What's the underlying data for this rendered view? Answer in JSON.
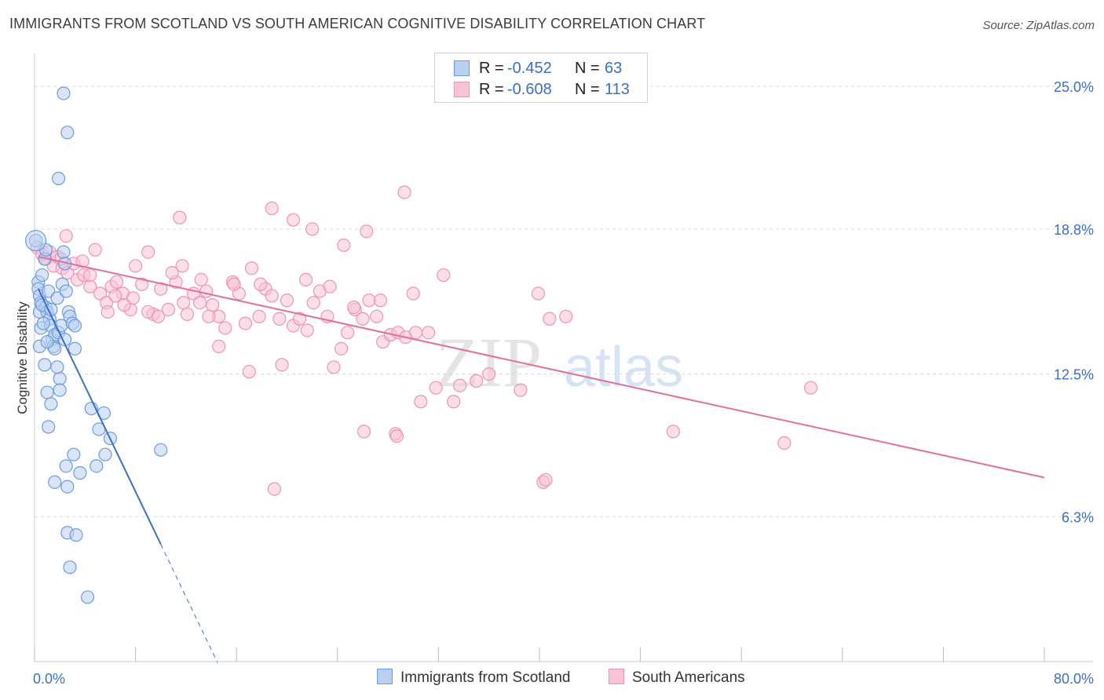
{
  "title": "IMMIGRANTS FROM SCOTLAND VS SOUTH AMERICAN COGNITIVE DISABILITY CORRELATION CHART",
  "source": "Source: ZipAtlas.com",
  "legend": {
    "rows": [
      {
        "r_label": "R =",
        "r_value": "-0.452",
        "n_label": "N =",
        "n_value": "63"
      },
      {
        "r_label": "R =",
        "r_value": "-0.608",
        "n_label": "N =",
        "n_value": "113"
      }
    ]
  },
  "watermark": {
    "zip": "ZIP",
    "atlas": "atlas"
  },
  "colors": {
    "blue": "#3a6fc4",
    "blue_fill": "#b9d0f0",
    "blue_stroke": "#6b9be0",
    "pink": "#e0709a",
    "pink_fill": "#f7c3d5",
    "pink_stroke": "#ee93b4",
    "grid": "#dddddd",
    "tick_label": "#3a6fc4"
  },
  "chart_data": {
    "type": "scatter",
    "title": "IMMIGRANTS FROM SCOTLAND VS SOUTH AMERICAN COGNITIVE DISABILITY CORRELATION CHART",
    "xlabel": "",
    "ylabel": "Cognitive Disability",
    "xlim": [
      0,
      80
    ],
    "ylim": [
      0,
      26.2
    ],
    "x_tick_labels": [
      "0.0%",
      "80.0%"
    ],
    "y_ticks": [
      {
        "value": 6.3,
        "label": "6.3%"
      },
      {
        "value": 12.5,
        "label": "12.5%"
      },
      {
        "value": 18.8,
        "label": "18.8%"
      },
      {
        "value": 25.0,
        "label": "25.0%"
      }
    ],
    "series": [
      {
        "name": "Immigrants from Scotland",
        "color_key": "blue",
        "r": -0.452,
        "n": 63,
        "trend": {
          "x0": 0.3,
          "y0": 16.2,
          "x1": 10.0,
          "y1": 5.1,
          "x_dash_end": 14.5
        },
        "points": [
          [
            0.1,
            18.3
          ],
          [
            0.3,
            16.5
          ],
          [
            0.3,
            16.2
          ],
          [
            0.4,
            15.9
          ],
          [
            0.5,
            15.6
          ],
          [
            0.4,
            15.2
          ],
          [
            0.5,
            14.5
          ],
          [
            0.4,
            13.7
          ],
          [
            0.6,
            16.8
          ],
          [
            0.8,
            17.5
          ],
          [
            0.9,
            17.9
          ],
          [
            0.9,
            15.4
          ],
          [
            1.0,
            15.2
          ],
          [
            1.1,
            16.1
          ],
          [
            1.2,
            14.9
          ],
          [
            1.3,
            14.6
          ],
          [
            1.4,
            14.0
          ],
          [
            1.5,
            13.7
          ],
          [
            1.6,
            13.6
          ],
          [
            1.6,
            14.2
          ],
          [
            1.8,
            15.8
          ],
          [
            1.9,
            14.3
          ],
          [
            2.0,
            12.3
          ],
          [
            2.0,
            11.8
          ],
          [
            1.8,
            12.8
          ],
          [
            2.1,
            14.6
          ],
          [
            2.2,
            16.4
          ],
          [
            2.3,
            17.8
          ],
          [
            2.4,
            17.3
          ],
          [
            2.5,
            16.1
          ],
          [
            2.7,
            15.2
          ],
          [
            2.8,
            15.0
          ],
          [
            3.0,
            14.7
          ],
          [
            3.2,
            14.6
          ],
          [
            3.2,
            13.6
          ],
          [
            0.8,
            12.9
          ],
          [
            1.0,
            11.7
          ],
          [
            1.3,
            11.2
          ],
          [
            1.1,
            10.2
          ],
          [
            4.5,
            11.0
          ],
          [
            5.5,
            10.8
          ],
          [
            5.1,
            10.1
          ],
          [
            6.0,
            9.7
          ],
          [
            5.6,
            9.0
          ],
          [
            4.9,
            8.5
          ],
          [
            3.1,
            9.0
          ],
          [
            2.5,
            8.5
          ],
          [
            3.6,
            8.2
          ],
          [
            1.6,
            7.8
          ],
          [
            2.6,
            7.6
          ],
          [
            2.6,
            5.6
          ],
          [
            3.3,
            5.5
          ],
          [
            2.8,
            4.1
          ],
          [
            4.2,
            2.8
          ],
          [
            10.0,
            9.2
          ],
          [
            2.3,
            24.7
          ],
          [
            2.6,
            23.0
          ],
          [
            1.9,
            21.0
          ],
          [
            0.6,
            15.5
          ],
          [
            1.3,
            15.3
          ],
          [
            0.7,
            14.7
          ],
          [
            2.4,
            14.0
          ],
          [
            1.0,
            13.9
          ]
        ]
      },
      {
        "name": "South Americans",
        "color_key": "pink",
        "r": -0.608,
        "n": 113,
        "trend": {
          "x0": 0.3,
          "y0": 17.6,
          "x1": 80.0,
          "y1": 8.0
        },
        "points": [
          [
            0.2,
            18.0
          ],
          [
            0.6,
            17.7
          ],
          [
            0.9,
            17.5
          ],
          [
            1.2,
            17.8
          ],
          [
            1.5,
            17.2
          ],
          [
            1.8,
            17.6
          ],
          [
            2.2,
            17.1
          ],
          [
            2.6,
            16.9
          ],
          [
            3.1,
            17.3
          ],
          [
            3.4,
            16.6
          ],
          [
            3.9,
            16.8
          ],
          [
            4.4,
            16.3
          ],
          [
            4.8,
            17.9
          ],
          [
            5.2,
            16.0
          ],
          [
            5.7,
            15.6
          ],
          [
            6.1,
            16.3
          ],
          [
            6.5,
            16.5
          ],
          [
            7.0,
            16.0
          ],
          [
            7.6,
            15.3
          ],
          [
            8.0,
            17.2
          ],
          [
            8.5,
            16.4
          ],
          [
            9.0,
            17.8
          ],
          [
            9.4,
            15.1
          ],
          [
            10.0,
            16.2
          ],
          [
            10.6,
            15.3
          ],
          [
            11.2,
            16.5
          ],
          [
            11.7,
            17.2
          ],
          [
            12.1,
            15.1
          ],
          [
            12.6,
            16.0
          ],
          [
            13.1,
            15.6
          ],
          [
            13.6,
            16.1
          ],
          [
            14.1,
            15.5
          ],
          [
            14.6,
            15.0
          ],
          [
            15.1,
            14.5
          ],
          [
            15.7,
            16.5
          ],
          [
            16.2,
            16.0
          ],
          [
            16.7,
            14.7
          ],
          [
            17.2,
            17.1
          ],
          [
            17.8,
            15.0
          ],
          [
            18.3,
            16.2
          ],
          [
            18.8,
            15.9
          ],
          [
            19.4,
            14.9
          ],
          [
            20.0,
            15.7
          ],
          [
            20.5,
            14.6
          ],
          [
            21.0,
            14.9
          ],
          [
            21.6,
            14.4
          ],
          [
            22.1,
            15.6
          ],
          [
            22.6,
            16.1
          ],
          [
            23.2,
            15.0
          ],
          [
            23.7,
            12.8
          ],
          [
            24.3,
            13.6
          ],
          [
            24.8,
            14.3
          ],
          [
            25.4,
            15.3
          ],
          [
            26.0,
            14.9
          ],
          [
            26.5,
            15.7
          ],
          [
            27.1,
            15.0
          ],
          [
            27.6,
            13.9
          ],
          [
            28.2,
            14.2
          ],
          [
            28.8,
            14.3
          ],
          [
            29.4,
            14.1
          ],
          [
            30.0,
            16.0
          ],
          [
            30.6,
            11.3
          ],
          [
            31.2,
            14.3
          ],
          [
            31.8,
            11.9
          ],
          [
            32.4,
            16.8
          ],
          [
            2.5,
            18.5
          ],
          [
            3.8,
            17.4
          ],
          [
            11.5,
            19.3
          ],
          [
            18.8,
            19.7
          ],
          [
            20.5,
            19.2
          ],
          [
            22.0,
            18.8
          ],
          [
            24.5,
            18.1
          ],
          [
            26.3,
            18.7
          ],
          [
            29.3,
            20.4
          ],
          [
            9.0,
            15.2
          ],
          [
            13.8,
            15.0
          ],
          [
            7.8,
            15.8
          ],
          [
            10.9,
            16.9
          ],
          [
            14.6,
            13.7
          ],
          [
            17.0,
            12.6
          ],
          [
            19.6,
            12.9
          ],
          [
            26.1,
            10.0
          ],
          [
            30.2,
            14.3
          ],
          [
            33.2,
            11.3
          ],
          [
            35.0,
            12.2
          ],
          [
            36.0,
            12.5
          ],
          [
            38.5,
            11.8
          ],
          [
            39.9,
            16.0
          ],
          [
            40.8,
            14.9
          ],
          [
            42.1,
            15.0
          ],
          [
            40.3,
            7.8
          ],
          [
            40.5,
            7.9
          ],
          [
            27.4,
            15.7
          ],
          [
            28.6,
            9.9
          ],
          [
            28.7,
            9.8
          ],
          [
            50.6,
            10.0
          ],
          [
            59.4,
            9.5
          ],
          [
            61.5,
            11.9
          ],
          [
            33.7,
            12.0
          ],
          [
            19.0,
            7.5
          ],
          [
            4.4,
            16.8
          ],
          [
            6.4,
            15.9
          ],
          [
            7.1,
            15.5
          ],
          [
            9.8,
            15.0
          ],
          [
            11.8,
            15.6
          ],
          [
            13.2,
            16.6
          ],
          [
            15.8,
            16.4
          ],
          [
            17.9,
            16.4
          ],
          [
            21.5,
            16.6
          ],
          [
            23.4,
            16.3
          ],
          [
            25.3,
            15.4
          ],
          [
            2.1,
            17.5
          ],
          [
            5.8,
            15.2
          ]
        ]
      }
    ]
  }
}
